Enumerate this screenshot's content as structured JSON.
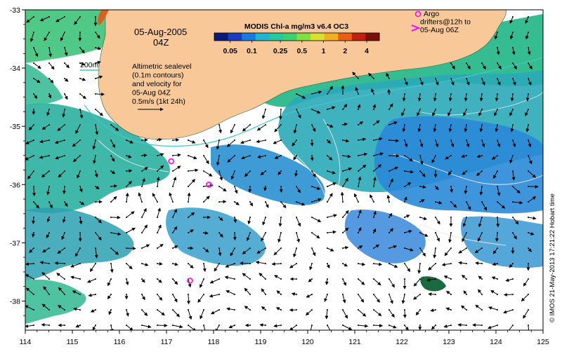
{
  "map": {
    "date_label": "05-Aug-2005",
    "time_label": "04Z",
    "colorbar": {
      "title": "MODIS Chl-a mg/m3 v6.4 OC3",
      "ticks": [
        "0.05",
        "0.1",
        "0.25",
        "0.5",
        "1",
        "2",
        "4"
      ],
      "colors": [
        "#0a1a7a",
        "#1a3cc0",
        "#1a7ae0",
        "#20b4d0",
        "#26c8a0",
        "#3cd070",
        "#80e040",
        "#d8e030",
        "#f0b020",
        "#e86018",
        "#c02010",
        "#7a1008"
      ]
    },
    "isobath_label": "200m",
    "altimetry_note": [
      "Altimetric sealevel",
      "(0.1m contours)",
      "and velocity for",
      "05-Aug 04Z",
      "0.5m/s (1kt 24h)"
    ],
    "argo_note": [
      "Argo",
      "drifters@12h to",
      "05-Aug 06Z"
    ],
    "credit": "© IMOS 21-May-2013 17:21:22 Hobart time",
    "lon_ticks": [
      "114",
      "115",
      "116",
      "117",
      "118",
      "119",
      "120",
      "121",
      "122",
      "123",
      "124",
      "125"
    ],
    "lat_ticks": [
      "-33",
      "-34",
      "-35",
      "-36",
      "-37",
      "-38"
    ],
    "lon_range": [
      114,
      125
    ],
    "lat_range": [
      -38.5,
      -33
    ],
    "argo_positions": [
      {
        "lon": 117.1,
        "lat": -35.6
      },
      {
        "lon": 117.9,
        "lat": -36.0
      },
      {
        "lon": 117.5,
        "lat": -37.65
      }
    ],
    "land_color": "#f8c898",
    "argo_color": "#ff00ff",
    "isobath_color": "#40c8c8"
  }
}
